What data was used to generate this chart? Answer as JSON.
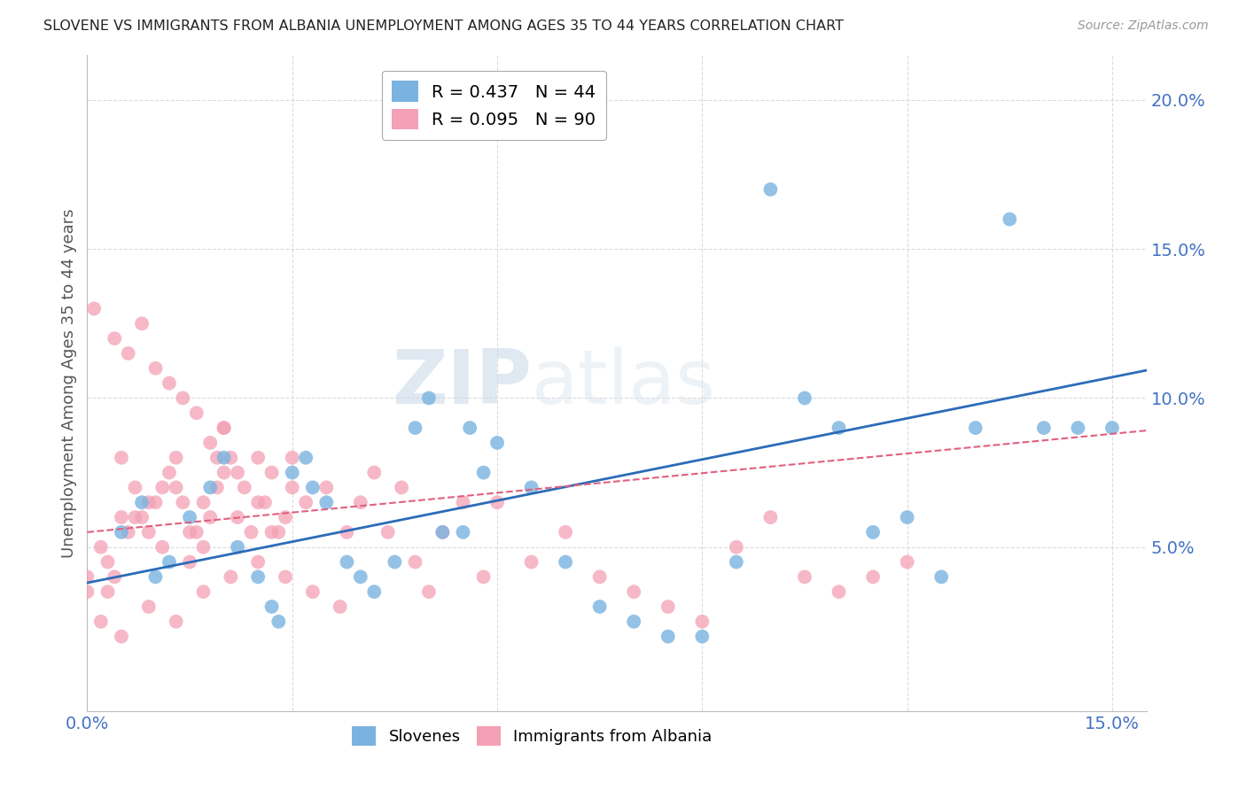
{
  "title": "SLOVENE VS IMMIGRANTS FROM ALBANIA UNEMPLOYMENT AMONG AGES 35 TO 44 YEARS CORRELATION CHART",
  "source": "Source: ZipAtlas.com",
  "ylabel": "Unemployment Among Ages 35 to 44 years",
  "xlim": [
    0.0,
    0.155
  ],
  "ylim": [
    -0.005,
    0.215
  ],
  "yticks": [
    0.05,
    0.1,
    0.15,
    0.2
  ],
  "ytick_labels": [
    "5.0%",
    "10.0%",
    "15.0%",
    "20.0%"
  ],
  "xticks": [
    0.0,
    0.03,
    0.06,
    0.09,
    0.12,
    0.15
  ],
  "xtick_labels": [
    "0.0%",
    "",
    "",
    "",
    "",
    "15.0%"
  ],
  "slovene_R": 0.437,
  "slovene_N": 44,
  "albania_R": 0.095,
  "albania_N": 90,
  "blue_color": "#7ab3e0",
  "pink_color": "#f4a0b5",
  "line_blue": "#2b6cb8",
  "line_pink": "#e06080",
  "grid_color": "#cccccc",
  "tick_color": "#4472c4",
  "watermark1": "ZIP",
  "watermark2": "atlas",
  "slovene_x": [
    0.005,
    0.008,
    0.01,
    0.012,
    0.015,
    0.018,
    0.02,
    0.022,
    0.025,
    0.028,
    0.03,
    0.032,
    0.033,
    0.035,
    0.038,
    0.04,
    0.042,
    0.045,
    0.05,
    0.055,
    0.056,
    0.058,
    0.06,
    0.065,
    0.07,
    0.075,
    0.08,
    0.085,
    0.09,
    0.095,
    0.1,
    0.105,
    0.11,
    0.115,
    0.12,
    0.125,
    0.13,
    0.135,
    0.14,
    0.145,
    0.15,
    0.027,
    0.048,
    0.052
  ],
  "slovene_y": [
    0.055,
    0.065,
    0.04,
    0.045,
    0.06,
    0.07,
    0.08,
    0.05,
    0.04,
    0.025,
    0.075,
    0.08,
    0.07,
    0.065,
    0.045,
    0.04,
    0.035,
    0.045,
    0.1,
    0.055,
    0.09,
    0.075,
    0.085,
    0.07,
    0.045,
    0.03,
    0.025,
    0.02,
    0.02,
    0.045,
    0.17,
    0.1,
    0.09,
    0.055,
    0.06,
    0.04,
    0.09,
    0.16,
    0.09,
    0.09,
    0.09,
    0.03,
    0.09,
    0.055
  ],
  "albania_x": [
    0.0,
    0.002,
    0.003,
    0.004,
    0.005,
    0.006,
    0.007,
    0.008,
    0.009,
    0.01,
    0.011,
    0.012,
    0.013,
    0.014,
    0.015,
    0.016,
    0.017,
    0.018,
    0.019,
    0.02,
    0.0,
    0.003,
    0.005,
    0.007,
    0.009,
    0.011,
    0.013,
    0.015,
    0.017,
    0.019,
    0.021,
    0.022,
    0.023,
    0.024,
    0.025,
    0.026,
    0.027,
    0.028,
    0.029,
    0.03,
    0.02,
    0.022,
    0.025,
    0.027,
    0.03,
    0.032,
    0.035,
    0.038,
    0.04,
    0.042,
    0.044,
    0.046,
    0.048,
    0.05,
    0.052,
    0.055,
    0.058,
    0.06,
    0.065,
    0.07,
    0.075,
    0.08,
    0.085,
    0.09,
    0.095,
    0.1,
    0.105,
    0.11,
    0.115,
    0.12,
    0.001,
    0.004,
    0.006,
    0.008,
    0.01,
    0.012,
    0.014,
    0.016,
    0.018,
    0.02,
    0.002,
    0.005,
    0.009,
    0.013,
    0.017,
    0.021,
    0.025,
    0.029,
    0.033,
    0.037
  ],
  "albania_y": [
    0.04,
    0.05,
    0.035,
    0.04,
    0.06,
    0.055,
    0.07,
    0.06,
    0.055,
    0.065,
    0.05,
    0.075,
    0.07,
    0.065,
    0.045,
    0.055,
    0.05,
    0.06,
    0.07,
    0.075,
    0.035,
    0.045,
    0.08,
    0.06,
    0.065,
    0.07,
    0.08,
    0.055,
    0.065,
    0.08,
    0.08,
    0.06,
    0.07,
    0.055,
    0.08,
    0.065,
    0.075,
    0.055,
    0.06,
    0.07,
    0.09,
    0.075,
    0.065,
    0.055,
    0.08,
    0.065,
    0.07,
    0.055,
    0.065,
    0.075,
    0.055,
    0.07,
    0.045,
    0.035,
    0.055,
    0.065,
    0.04,
    0.065,
    0.045,
    0.055,
    0.04,
    0.035,
    0.03,
    0.025,
    0.05,
    0.06,
    0.04,
    0.035,
    0.04,
    0.045,
    0.13,
    0.12,
    0.115,
    0.125,
    0.11,
    0.105,
    0.1,
    0.095,
    0.085,
    0.09,
    0.025,
    0.02,
    0.03,
    0.025,
    0.035,
    0.04,
    0.045,
    0.04,
    0.035,
    0.03
  ]
}
